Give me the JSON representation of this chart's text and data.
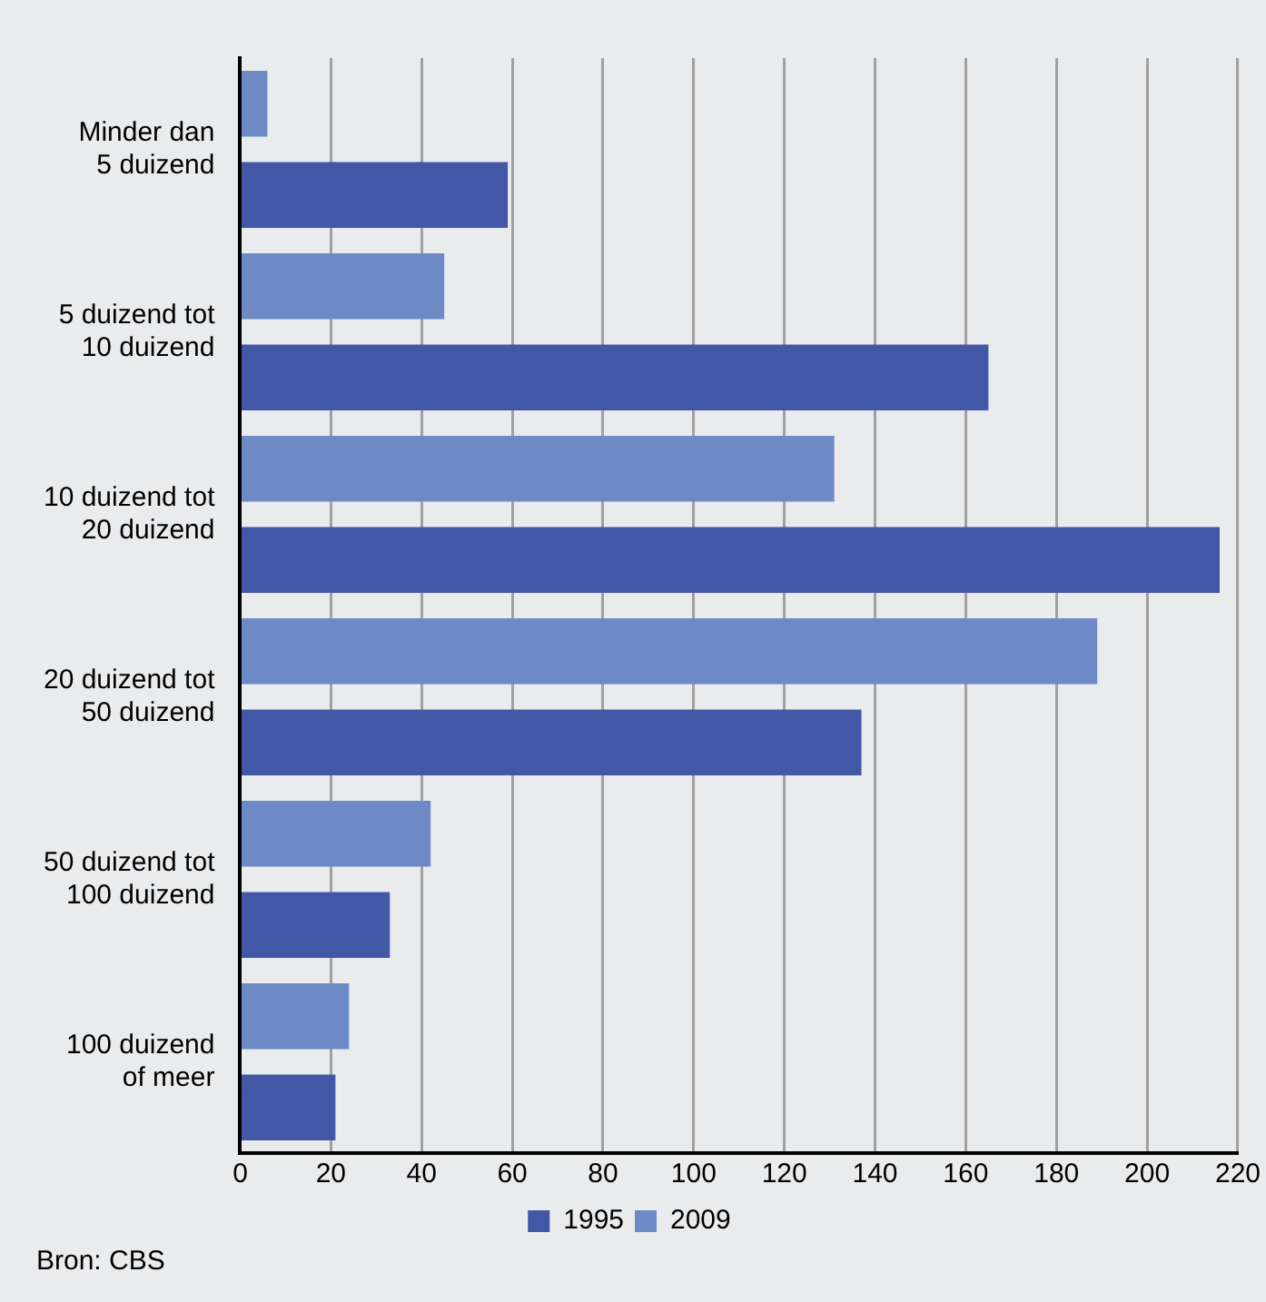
{
  "chart_data": {
    "type": "bar",
    "orientation": "horizontal",
    "categories": [
      "Minder dan\n5 duizend",
      "5 duizend tot\n10 duizend",
      "10 duizend tot\n20 duizend",
      "20 duizend tot\n50 duizend",
      "50 duizend tot\n100 duizend",
      "100 duizend\nof meer"
    ],
    "series": [
      {
        "name": "1995",
        "color": "#4257a6",
        "values": [
          59,
          165,
          216,
          137,
          33,
          21
        ]
      },
      {
        "name": "2009",
        "color": "#6d8ac6",
        "values": [
          6,
          45,
          131,
          189,
          42,
          24
        ]
      }
    ],
    "xlim": [
      0,
      220
    ],
    "xticks": [
      0,
      20,
      40,
      60,
      80,
      100,
      120,
      140,
      160,
      180,
      200,
      220
    ],
    "grid": "x",
    "legend": "bottom",
    "annotations": [
      "Bron: CBS"
    ]
  }
}
